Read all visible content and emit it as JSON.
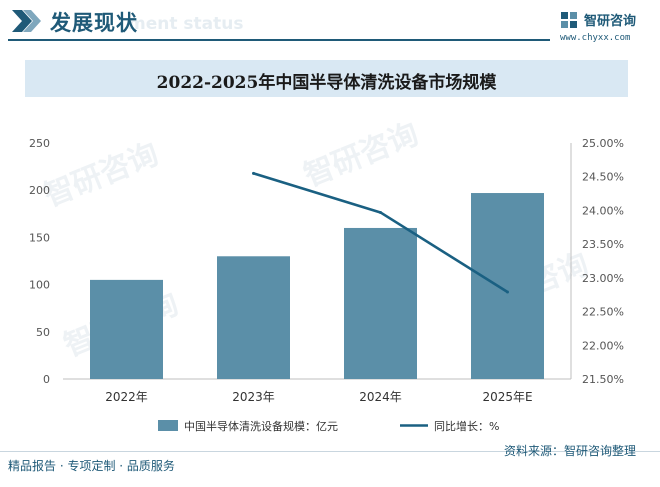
{
  "header": {
    "section_title": "发展现状",
    "section_subtitle": "ment status",
    "logo_name": "智研咨询",
    "logo_url": "www.chyxx.com"
  },
  "colors": {
    "brand": "#1f5a78",
    "bar": "#5b8fa8",
    "line": "#1a6082",
    "title_band": "#d9e8f3"
  },
  "footer": {
    "left_text": "精品报告 · 专项定制 · 品质服务",
    "source_text": "资料来源：智研咨询整理"
  },
  "chart_data": {
    "type": "bar",
    "title": "2022-2025年中国半导体清洗设备市场规模",
    "categories": [
      "2022年",
      "2023年",
      "2024年",
      "2025年E"
    ],
    "series": [
      {
        "name": "中国半导体清洗设备规模：亿元",
        "type": "bar",
        "axis": "left",
        "values": [
          105,
          130,
          160,
          197
        ]
      },
      {
        "name": "同比增长：%",
        "type": "line",
        "axis": "right",
        "values": [
          null,
          24.55,
          23.97,
          22.79
        ]
      }
    ],
    "y_left": {
      "min": 0,
      "max": 250,
      "ticks": [
        "0",
        "50",
        "100",
        "150",
        "200",
        "250"
      ]
    },
    "y_right": {
      "min": 21.5,
      "max": 25.0,
      "ticks": [
        "21.50%",
        "22.00%",
        "22.50%",
        "23.00%",
        "23.50%",
        "24.00%",
        "24.50%",
        "25.00%"
      ]
    },
    "grid": false,
    "legend_position": "bottom"
  }
}
